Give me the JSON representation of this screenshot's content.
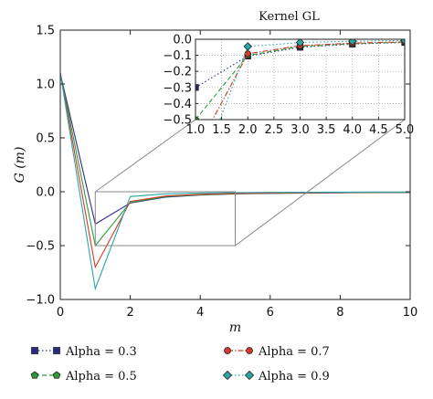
{
  "chart_data": [
    {
      "type": "line",
      "xlabel": "m",
      "ylabel": "G (m)",
      "xlim": [
        0,
        10
      ],
      "ylim": [
        -1.0,
        1.5
      ],
      "xticks": [
        0,
        2,
        4,
        6,
        8,
        10
      ],
      "yticks": [
        -1.0,
        -0.5,
        0.0,
        0.5,
        1.0,
        1.5
      ],
      "xtick_labels": [
        "0",
        "2",
        "4",
        "6",
        "8",
        "10"
      ],
      "ytick_labels": [
        "−1.0",
        "−0.5",
        "0.0",
        "0.5",
        "1.0",
        "1.5"
      ],
      "grid": false,
      "zoom_region": {
        "x": [
          1,
          5
        ],
        "y": [
          -0.5,
          0.0
        ]
      },
      "series": [
        {
          "name": "Alpha = 0.3",
          "color": "#2b2a8c",
          "marker": "square",
          "linestyle": "dotted",
          "x": [
            0,
            1,
            2,
            3,
            4,
            5,
            6,
            7,
            8,
            9,
            10
          ],
          "y": [
            1.1,
            -0.3,
            -0.105,
            -0.05,
            -0.03,
            -0.02,
            -0.015,
            -0.012,
            -0.01,
            -0.008,
            -0.007
          ]
        },
        {
          "name": "Alpha = 0.5",
          "color": "#2e9a3a",
          "marker": "pentagon",
          "linestyle": "dashed",
          "x": [
            0,
            1,
            2,
            3,
            4,
            5,
            6,
            7,
            8,
            9,
            10
          ],
          "y": [
            1.1,
            -0.5,
            -0.1,
            -0.045,
            -0.028,
            -0.018,
            -0.013,
            -0.01,
            -0.008,
            -0.007,
            -0.006
          ]
        },
        {
          "name": "Alpha = 0.7",
          "color": "#d23a2a",
          "marker": "circle",
          "linestyle": "dashdot",
          "x": [
            0,
            1,
            2,
            3,
            4,
            5,
            6,
            7,
            8,
            9,
            10
          ],
          "y": [
            1.1,
            -0.7,
            -0.09,
            -0.04,
            -0.024,
            -0.016,
            -0.012,
            -0.009,
            -0.007,
            -0.006,
            -0.005
          ]
        },
        {
          "name": "Alpha = 0.9",
          "color": "#2aa6a6",
          "marker": "diamond",
          "linestyle": "dotted",
          "x": [
            0,
            1,
            2,
            3,
            4,
            5,
            6,
            7,
            8,
            9,
            10
          ],
          "y": [
            1.1,
            -0.9,
            -0.045,
            -0.02,
            -0.012,
            -0.008,
            -0.006,
            -0.005,
            -0.004,
            -0.003,
            -0.003
          ]
        }
      ],
      "legend": {
        "position": "bottom",
        "columns": 2
      }
    },
    {
      "type": "line",
      "title": "Kernel GL",
      "xlim": [
        1.0,
        5.0
      ],
      "ylim": [
        -0.5,
        0.0
      ],
      "xticks": [
        1.0,
        1.5,
        2.0,
        2.5,
        3.0,
        3.5,
        4.0,
        4.5,
        5.0
      ],
      "yticks": [
        -0.5,
        -0.4,
        -0.3,
        -0.2,
        -0.1,
        0.0
      ],
      "xtick_labels": [
        "1.0",
        "1.5",
        "2.0",
        "2.5",
        "3.0",
        "3.5",
        "4.0",
        "4.5",
        "5.0"
      ],
      "ytick_labels": [
        "−0.5",
        "−0.4",
        "−0.3",
        "−0.2",
        "−0.1",
        "0.0"
      ],
      "grid": true,
      "series": [
        {
          "name": "Alpha = 0.3",
          "color": "#2b2a8c",
          "marker": "square",
          "linestyle": "dotted",
          "x": [
            1,
            2,
            3,
            4,
            5
          ],
          "y": [
            -0.3,
            -0.105,
            -0.05,
            -0.03,
            -0.02
          ]
        },
        {
          "name": "Alpha = 0.5",
          "color": "#2e9a3a",
          "marker": "pentagon",
          "linestyle": "dashed",
          "x": [
            1,
            2,
            3,
            4,
            5
          ],
          "y": [
            -0.5,
            -0.1,
            -0.045,
            -0.028,
            -0.018
          ]
        },
        {
          "name": "Alpha = 0.7",
          "color": "#d23a2a",
          "marker": "circle",
          "linestyle": "dashdot",
          "x": [
            1,
            2,
            3,
            4,
            5
          ],
          "y": [
            -0.7,
            -0.09,
            -0.04,
            -0.024,
            -0.016
          ]
        },
        {
          "name": "Alpha = 0.9",
          "color": "#2aa6a6",
          "marker": "diamond",
          "linestyle": "dotted",
          "x": [
            1,
            2,
            3,
            4,
            5
          ],
          "y": [
            -0.9,
            -0.045,
            -0.02,
            -0.012,
            -0.008
          ]
        }
      ]
    }
  ]
}
